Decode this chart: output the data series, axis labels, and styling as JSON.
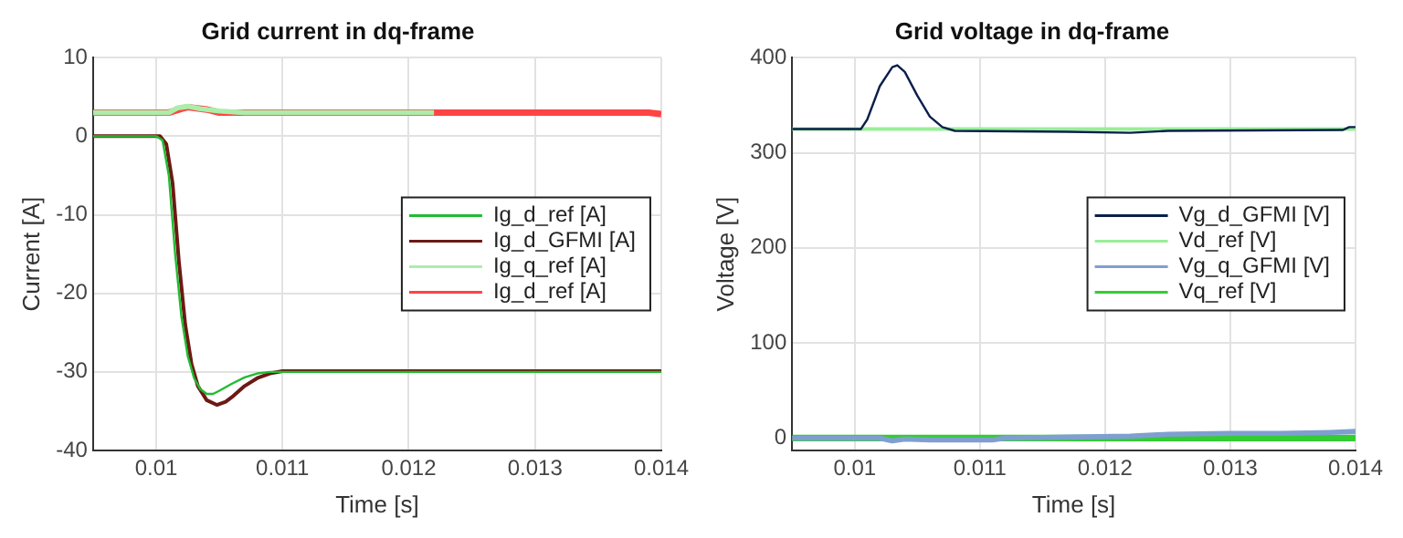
{
  "chart_data": [
    {
      "type": "line",
      "title": "Grid current in dq-frame",
      "xlabel": "Time [s]",
      "ylabel": "Current [A]",
      "xlim": [
        0.0095,
        0.014
      ],
      "xticks": [
        0.01,
        0.011,
        0.012,
        0.013,
        0.014
      ],
      "ylim": [
        -40,
        10
      ],
      "yticks": [
        -40,
        -30,
        -20,
        -10,
        0,
        10
      ],
      "grid": true,
      "legend": "right",
      "marker": "none",
      "line_style": "solid",
      "series": [
        {
          "name": "Ig_d_ref [A]",
          "color": "#22bb33",
          "x": [
            0.0095,
            0.01,
            0.01005,
            0.0101,
            0.01015,
            0.0102,
            0.01025,
            0.0103,
            0.01035,
            0.0104,
            0.01045,
            0.0105,
            0.0106,
            0.0107,
            0.0108,
            0.0109,
            0.014
          ],
          "values": [
            0,
            0,
            -0.5,
            -5,
            -15,
            -23,
            -28,
            -30.8,
            -32.2,
            -32.8,
            -32.8,
            -32.4,
            -31.5,
            -30.7,
            -30.2,
            -30,
            -30
          ]
        },
        {
          "name": "Ig_d_GFMI [A]",
          "color": "#6b1a14",
          "x": [
            0.0095,
            0.01003,
            0.01008,
            0.01013,
            0.01018,
            0.01023,
            0.01028,
            0.01033,
            0.0104,
            0.01048,
            0.01055,
            0.0106,
            0.0107,
            0.0108,
            0.0109,
            0.011,
            0.014
          ],
          "values": [
            0,
            0,
            -1,
            -6,
            -16,
            -24,
            -29,
            -31.8,
            -33.6,
            -34.2,
            -33.8,
            -33.2,
            -31.8,
            -30.8,
            -30.2,
            -29.9,
            -29.9
          ]
        },
        {
          "name": "Ig_q_ref [A]",
          "color": "#aaeeaa",
          "x": [
            0.0095,
            0.0101,
            0.01017,
            0.01025,
            0.01035,
            0.0105,
            0.0107,
            0.0122
          ],
          "values": [
            3,
            3,
            3.6,
            3.8,
            3.5,
            3.2,
            3,
            3
          ]
        },
        {
          "name": "Ig_d_ref [A]",
          "color": "#ff4444",
          "x": [
            0.0095,
            0.0101,
            0.0102,
            0.01025,
            0.0104,
            0.0105,
            0.0139,
            0.014
          ],
          "values": [
            3,
            3,
            3.5,
            3.7,
            3.4,
            3,
            3,
            2.8
          ]
        }
      ]
    },
    {
      "type": "line",
      "title": "Grid voltage in dq-frame",
      "xlabel": "Time [s]",
      "ylabel": "Voltage [V]",
      "xlim": [
        0.0095,
        0.014
      ],
      "xticks": [
        0.01,
        0.011,
        0.012,
        0.013,
        0.014
      ],
      "ylim": [
        -13,
        400
      ],
      "yticks": [
        0,
        100,
        200,
        300,
        400
      ],
      "grid": true,
      "legend": "right",
      "marker": "none",
      "line_style": "solid",
      "series": [
        {
          "name": "Vg_d_GFMI [V]",
          "color": "#0a1f4a",
          "x": [
            0.0095,
            0.01005,
            0.0101,
            0.0102,
            0.0103,
            0.01034,
            0.0104,
            0.0105,
            0.0106,
            0.0107,
            0.0108,
            0.0117,
            0.0122,
            0.0125,
            0.0139,
            0.01395,
            0.014
          ],
          "values": [
            325,
            325,
            335,
            370,
            390,
            392,
            385,
            360,
            338,
            327,
            323,
            322,
            321,
            323,
            324,
            327,
            327
          ]
        },
        {
          "name": "Vd_ref [V]",
          "color": "#99ee99",
          "x": [
            0.0095,
            0.014
          ],
          "values": [
            325,
            325
          ]
        },
        {
          "name": "Vg_q_GFMI [V]",
          "color": "#7f9fd0",
          "x": [
            0.0095,
            0.0102,
            0.0103,
            0.0104,
            0.0106,
            0.0111,
            0.0112,
            0.0117,
            0.0122,
            0.0125,
            0.013,
            0.0134,
            0.0138,
            0.014
          ],
          "values": [
            0,
            0,
            -3,
            -1,
            -2,
            -2,
            0,
            1,
            2,
            4,
            5,
            5,
            6,
            7
          ]
        },
        {
          "name": "Vq_ref [V]",
          "color": "#33cc33",
          "x": [
            0.0095,
            0.014
          ],
          "values": [
            0,
            0
          ]
        }
      ]
    }
  ]
}
